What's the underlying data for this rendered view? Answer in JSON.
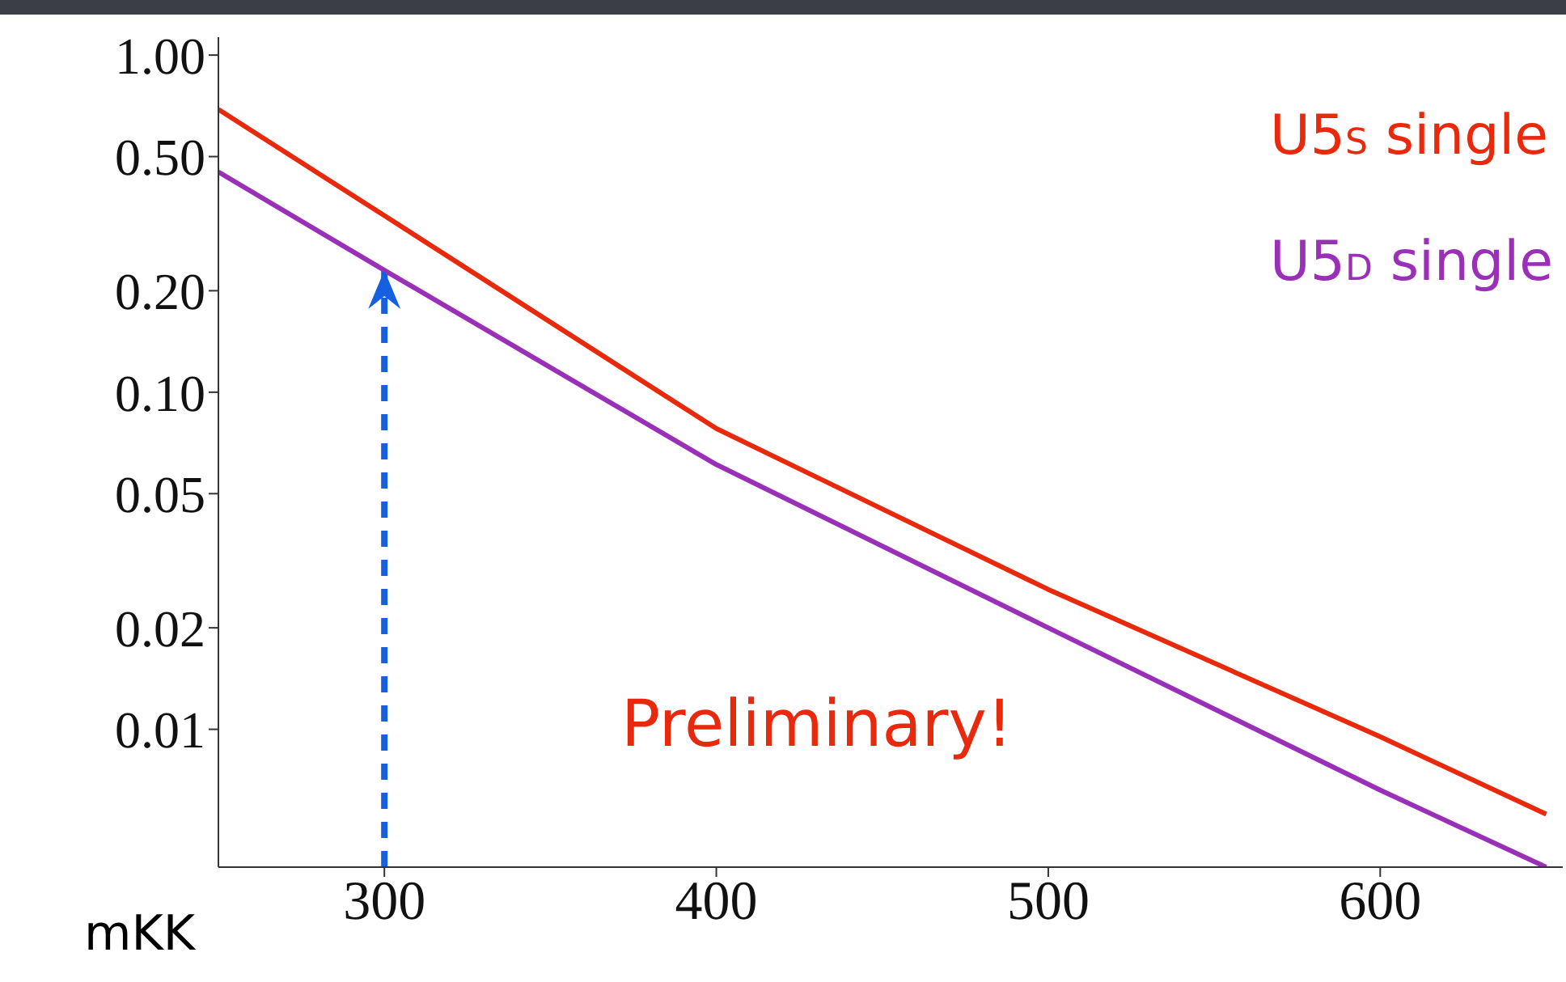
{
  "chart_data": {
    "type": "line",
    "xlabel": "mKK",
    "log": "y",
    "grid": false,
    "legend": "top right",
    "marker": "none",
    "line_style": "solid",
    "x": [
      250,
      300,
      400,
      500,
      600,
      650
    ],
    "xlim": [
      250,
      655
    ],
    "xticks": [
      300,
      400,
      500,
      600
    ],
    "ylim": [
      0.0039,
      1.13
    ],
    "yticks": [
      {
        "value": 1,
        "label": "1.00"
      },
      {
        "value": 0.5,
        "label": "0.50"
      },
      {
        "value": 0.2,
        "label": "0.20"
      },
      {
        "value": 0.1,
        "label": "0.10"
      },
      0.05,
      0.02,
      0.01
    ],
    "series": [
      {
        "name": "U5$_{S}$ single",
        "color": "#e8290c",
        "values": [
          0.69,
          0.334,
          0.078,
          0.026,
          0.0095,
          0.0056
        ]
      },
      {
        "name": "U5$_{D}$ single",
        "color": "#9b30b8",
        "values": [
          0.45,
          0.23,
          0.061,
          0.02,
          0.0066,
          0.0039
        ]
      }
    ],
    "ref_lines": [
      {
        "axis": "x",
        "value": 300,
        "color": "#1560e0",
        "line_style": "dashed"
      }
    ],
    "annotations": [
      "Preliminary!"
    ]
  }
}
